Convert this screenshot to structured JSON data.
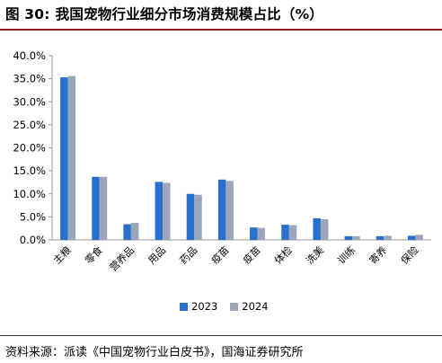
{
  "header": {
    "figure_label": "图 30:",
    "title": "我国宠物行业细分市场消费规模占比（%）"
  },
  "source": "资料来源：派读《中国宠物行业白皮书》，国海证券研究所",
  "colors": {
    "series_2023": "#2a6fcd",
    "series_2024": "#9aa7bb"
  },
  "chart_data": {
    "type": "bar",
    "categories": [
      "主粮",
      "零食",
      "营养品",
      "用品",
      "药品",
      "疫苗",
      "疫苗",
      "体检",
      "洗美",
      "训练",
      "寄养",
      "保险"
    ],
    "series": [
      {
        "name": "2023",
        "values": [
          35.3,
          13.7,
          3.4,
          12.6,
          10.0,
          13.1,
          2.7,
          3.3,
          4.7,
          0.8,
          0.8,
          0.9
        ]
      },
      {
        "name": "2024",
        "values": [
          35.6,
          13.7,
          3.7,
          12.4,
          9.8,
          12.8,
          2.6,
          3.2,
          4.5,
          0.8,
          0.9,
          1.1
        ]
      }
    ],
    "ylim": [
      0,
      40
    ],
    "yticks": [
      "0.0%",
      "5.0%",
      "10.0%",
      "15.0%",
      "20.0%",
      "25.0%",
      "30.0%",
      "35.0%",
      "40.0%"
    ],
    "grid": false,
    "legend": "bottom"
  }
}
